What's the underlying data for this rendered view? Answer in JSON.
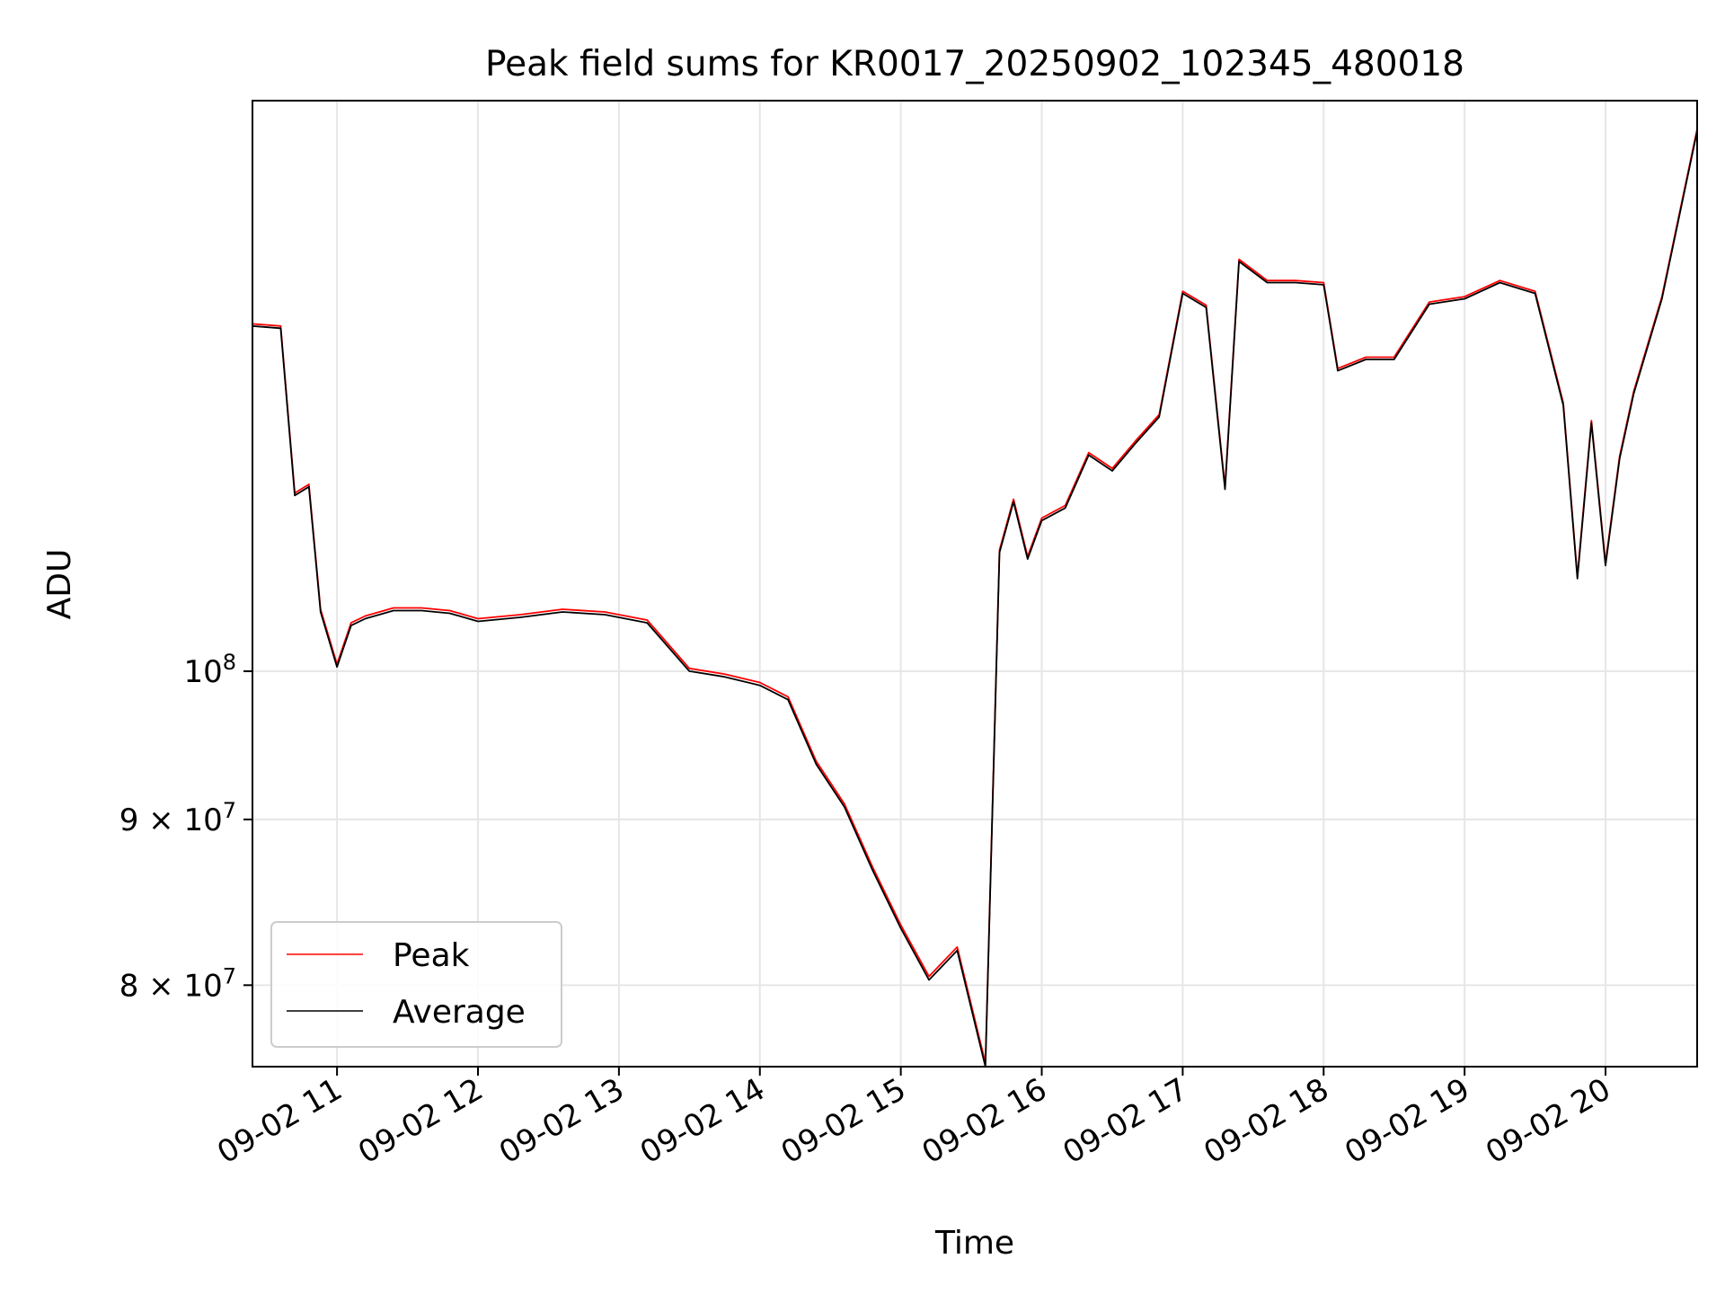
{
  "chart_data": {
    "type": "line",
    "title": "Peak field sums for KR0017_20250902_102345_480018",
    "xlabel": "Time",
    "ylabel": "ADU",
    "yscale": "log",
    "grid": true,
    "legend_position": "lower-left",
    "xlim": [
      "09-02 10:24",
      "09-02 20:39"
    ],
    "ylim": [
      75500000,
      150000000
    ],
    "x_ticks": [
      "09-02 11",
      "09-02 12",
      "09-02 13",
      "09-02 14",
      "09-02 15",
      "09-02 16",
      "09-02 17",
      "09-02 18",
      "09-02 19",
      "09-02 20"
    ],
    "y_ticks": [
      {
        "value": 80000000,
        "base": "8",
        "mult": "×",
        "exp_base": "10",
        "exp": "7"
      },
      {
        "value": 90000000,
        "base": "9",
        "mult": "×",
        "exp_base": "10",
        "exp": "7"
      },
      {
        "value": 100000000,
        "base": "",
        "mult": "",
        "exp_base": "10",
        "exp": "8"
      }
    ],
    "x": [
      "09-02 10:24",
      "09-02 10:36",
      "09-02 10:42",
      "09-02 10:48",
      "09-02 10:53",
      "09-02 11:00",
      "09-02 11:06",
      "09-02 11:12",
      "09-02 11:24",
      "09-02 11:36",
      "09-02 11:48",
      "09-02 12:00",
      "09-02 12:18",
      "09-02 12:36",
      "09-02 12:54",
      "09-02 13:12",
      "09-02 13:30",
      "09-02 13:45",
      "09-02 14:00",
      "09-02 14:12",
      "09-02 14:24",
      "09-02 14:36",
      "09-02 14:48",
      "09-02 15:00",
      "09-02 15:12",
      "09-02 15:24",
      "09-02 15:36",
      "09-02 15:42",
      "09-02 15:48",
      "09-02 15:54",
      "09-02 16:00",
      "09-02 16:10",
      "09-02 16:20",
      "09-02 16:30",
      "09-02 16:40",
      "09-02 16:50",
      "09-02 17:00",
      "09-02 17:10",
      "09-02 17:18",
      "09-02 17:24",
      "09-02 17:36",
      "09-02 17:48",
      "09-02 18:00",
      "09-02 18:06",
      "09-02 18:18",
      "09-02 18:30",
      "09-02 18:45",
      "09-02 19:00",
      "09-02 19:15",
      "09-02 19:30",
      "09-02 19:42",
      "09-02 19:48",
      "09-02 19:54",
      "09-02 20:00",
      "09-02 20:06",
      "09-02 20:12",
      "09-02 20:24",
      "09-02 20:39"
    ],
    "series": [
      {
        "name": "Peak",
        "color": "#ff0000",
        "values": [
          128000000,
          127800000,
          113500000,
          114200000,
          104500000,
          100500000,
          103500000,
          104000000,
          104600000,
          104600000,
          104400000,
          103800000,
          104100000,
          104500000,
          104300000,
          103700000,
          100200000,
          99800000,
          99200000,
          98200000,
          93800000,
          91000000,
          87000000,
          83500000,
          80500000,
          82200000,
          75700000,
          109000000,
          113000000,
          108500000,
          111500000,
          112500000,
          116800000,
          115500000,
          117800000,
          120000000,
          131000000,
          129700000,
          114000000,
          134000000,
          132000000,
          132000000,
          131800000,
          124000000,
          125000000,
          125000000,
          130000000,
          130500000,
          132000000,
          131000000,
          121000000,
          107000000,
          119500000,
          108000000,
          116500000,
          122000000,
          130500000,
          147000000
        ]
      },
      {
        "name": "Average",
        "color": "#000000",
        "values": [
          127800000,
          127600000,
          113300000,
          114000000,
          104300000,
          100300000,
          103300000,
          103800000,
          104400000,
          104400000,
          104200000,
          103600000,
          103900000,
          104300000,
          104100000,
          103500000,
          100000000,
          99600000,
          99000000,
          98000000,
          93600000,
          90800000,
          86800000,
          83300000,
          80300000,
          82000000,
          75500000,
          108800000,
          112800000,
          108300000,
          111300000,
          112300000,
          116600000,
          115300000,
          117600000,
          119800000,
          130800000,
          129500000,
          113800000,
          133800000,
          131800000,
          131800000,
          131600000,
          123800000,
          124800000,
          124800000,
          129800000,
          130300000,
          131800000,
          130800000,
          120800000,
          106800000,
          119300000,
          107800000,
          116300000,
          121800000,
          130300000,
          146800000
        ]
      }
    ],
    "annotations": []
  }
}
